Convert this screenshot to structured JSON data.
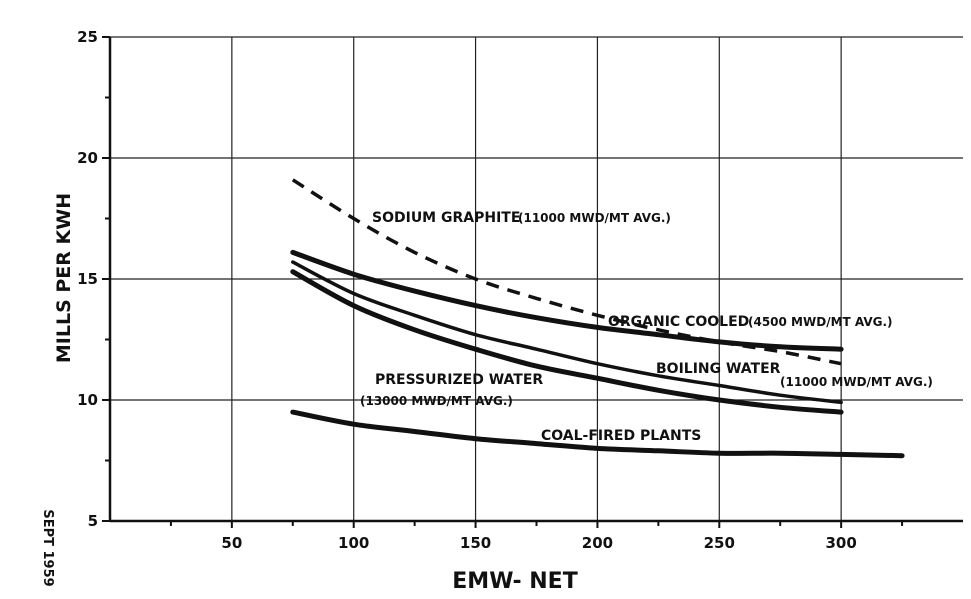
{
  "chart_data": {
    "type": "line",
    "xlabel": "EMW- NET",
    "ylabel": "MILLS PER KWH",
    "xlim": [
      0,
      350
    ],
    "ylim": [
      5,
      25
    ],
    "xticks": [
      50,
      100,
      150,
      200,
      250,
      300
    ],
    "yticks": [
      5,
      10,
      15,
      20,
      25
    ],
    "grid": true,
    "stamp": "SEPT 1959",
    "series": [
      {
        "name": "SODIUM GRAPHITE",
        "detail": "(11000 MWD/MT AVG.)",
        "style": "dashed",
        "x": [
          75,
          100,
          125,
          150,
          175,
          200,
          225,
          250,
          275,
          300
        ],
        "y": [
          19.1,
          17.5,
          16.1,
          15.0,
          14.2,
          13.5,
          12.9,
          12.4,
          12.0,
          11.5
        ]
      },
      {
        "name": "ORGANIC COOLED",
        "detail": "(4500 MWD/MT AVG.)",
        "style": "solid",
        "x": [
          75,
          100,
          125,
          150,
          175,
          200,
          225,
          250,
          275,
          300
        ],
        "y": [
          16.1,
          15.2,
          14.5,
          13.9,
          13.4,
          13.0,
          12.7,
          12.4,
          12.2,
          12.1
        ]
      },
      {
        "name": "BOILING WATER",
        "detail": "(11000 MWD/MT AVG.)",
        "style": "solid",
        "x": [
          75,
          100,
          125,
          150,
          175,
          200,
          225,
          250,
          275,
          300
        ],
        "y": [
          15.7,
          14.4,
          13.5,
          12.7,
          12.1,
          11.5,
          11.0,
          10.6,
          10.2,
          9.9
        ]
      },
      {
        "name": "PRESSURIZED WATER",
        "detail": "(13000 MWD/MT AVG.)",
        "style": "solid",
        "x": [
          75,
          100,
          125,
          150,
          175,
          200,
          225,
          250,
          275,
          300
        ],
        "y": [
          15.3,
          13.9,
          12.9,
          12.1,
          11.4,
          10.9,
          10.4,
          10.0,
          9.7,
          9.5
        ]
      },
      {
        "name": "COAL-FIRED PLANTS",
        "detail": "",
        "style": "solid",
        "x": [
          75,
          100,
          125,
          150,
          175,
          200,
          225,
          250,
          275,
          300,
          325
        ],
        "y": [
          9.5,
          9.0,
          8.7,
          8.4,
          8.2,
          8.0,
          7.9,
          7.8,
          7.8,
          7.75,
          7.7
        ]
      }
    ]
  }
}
